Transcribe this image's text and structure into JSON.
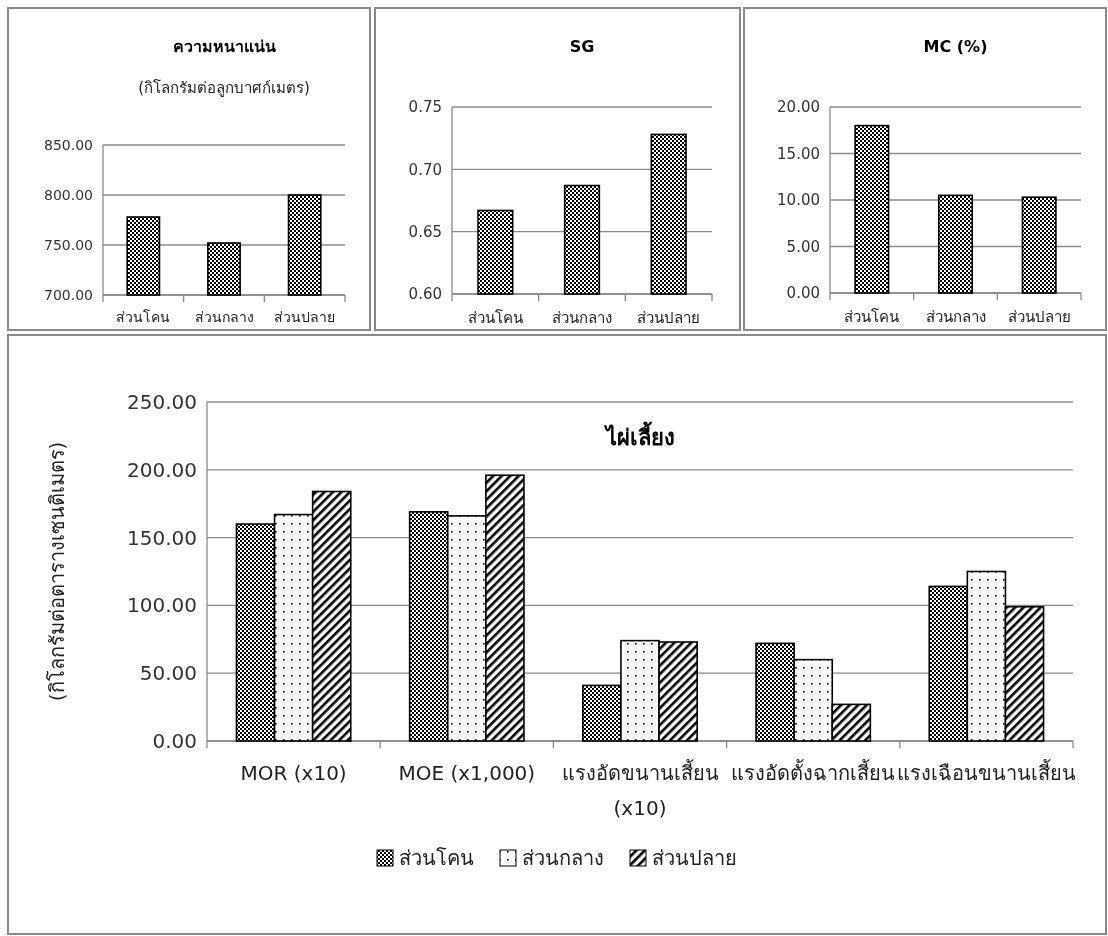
{
  "chart_data": [
    {
      "type": "bar",
      "title": "ความหนาแน่น",
      "subtitle": "(กิโลกรัมต่อลูกบาศก์เมตร)",
      "categories": [
        "ส่วนโคน",
        "ส่วนกลาง",
        "ส่วนปลาย"
      ],
      "values": [
        778,
        752,
        800
      ],
      "color": "#000000",
      "ylim": [
        700,
        850
      ],
      "yticks": [
        {
          "value": 700,
          "label": "700.00"
        },
        {
          "value": 750,
          "label": "750.00"
        },
        {
          "value": 800,
          "label": "800.00"
        },
        {
          "value": 850,
          "label": "850.00"
        }
      ],
      "grid": "y",
      "legend": false
    },
    {
      "type": "bar",
      "title": "SG",
      "categories": [
        "ส่วนโคน",
        "ส่วนกลาง",
        "ส่วนปลาย"
      ],
      "values": [
        0.667,
        0.687,
        0.728
      ],
      "color": "#000000",
      "ylim": [
        0.6,
        0.75
      ],
      "yticks": [
        {
          "value": 0.6,
          "label": "0.60"
        },
        {
          "value": 0.65,
          "label": "0.65"
        },
        {
          "value": 0.7,
          "label": "0.70"
        },
        {
          "value": 0.75,
          "label": "0.75"
        }
      ],
      "grid": "y",
      "legend": false
    },
    {
      "type": "bar",
      "title": "MC (%)",
      "categories": [
        "ส่วนโคน",
        "ส่วนกลาง",
        "ส่วนปลาย"
      ],
      "values": [
        18.0,
        10.5,
        10.3
      ],
      "color": "#000000",
      "ylim": [
        0,
        20
      ],
      "yticks": [
        {
          "value": 0,
          "label": "0.00"
        },
        {
          "value": 5,
          "label": "5.00"
        },
        {
          "value": 10,
          "label": "10.00"
        },
        {
          "value": 15,
          "label": "15.00"
        },
        {
          "value": 20,
          "label": "20.00"
        }
      ],
      "grid": "y",
      "legend": false
    },
    {
      "type": "bar",
      "title": "ไผ่เลี้ยง",
      "ylabel": "(กิโลกรัมต่อตารางเซนติเมตร)",
      "categories": [
        "MOR (x10)",
        "MOE (x1,000)",
        "แรงอัดขนานเสี้ยน (x10)",
        "แรงอัดตั้งฉากเสี้ยน",
        "แรงเฉือนขนานเสี้ยน"
      ],
      "series": [
        {
          "name": "ส่วนโคน",
          "color": "#000000",
          "values": [
            160,
            169,
            41,
            72,
            114
          ]
        },
        {
          "name": "ส่วนกลาง",
          "color": "#000000",
          "values": [
            167,
            166,
            74,
            60,
            125
          ]
        },
        {
          "name": "ส่วนปลาย",
          "color": "#000000",
          "values": [
            184,
            196,
            73,
            27,
            99
          ]
        }
      ],
      "ylim": [
        0,
        250
      ],
      "yticks": [
        {
          "value": 0,
          "label": "0.00"
        },
        {
          "value": 50,
          "label": "50.00"
        },
        {
          "value": 100,
          "label": "100.00"
        },
        {
          "value": 150,
          "label": "150.00"
        },
        {
          "value": 200,
          "label": "200.00"
        },
        {
          "value": 250,
          "label": "250.00"
        }
      ],
      "grid": "y",
      "legend": "bottom"
    }
  ]
}
